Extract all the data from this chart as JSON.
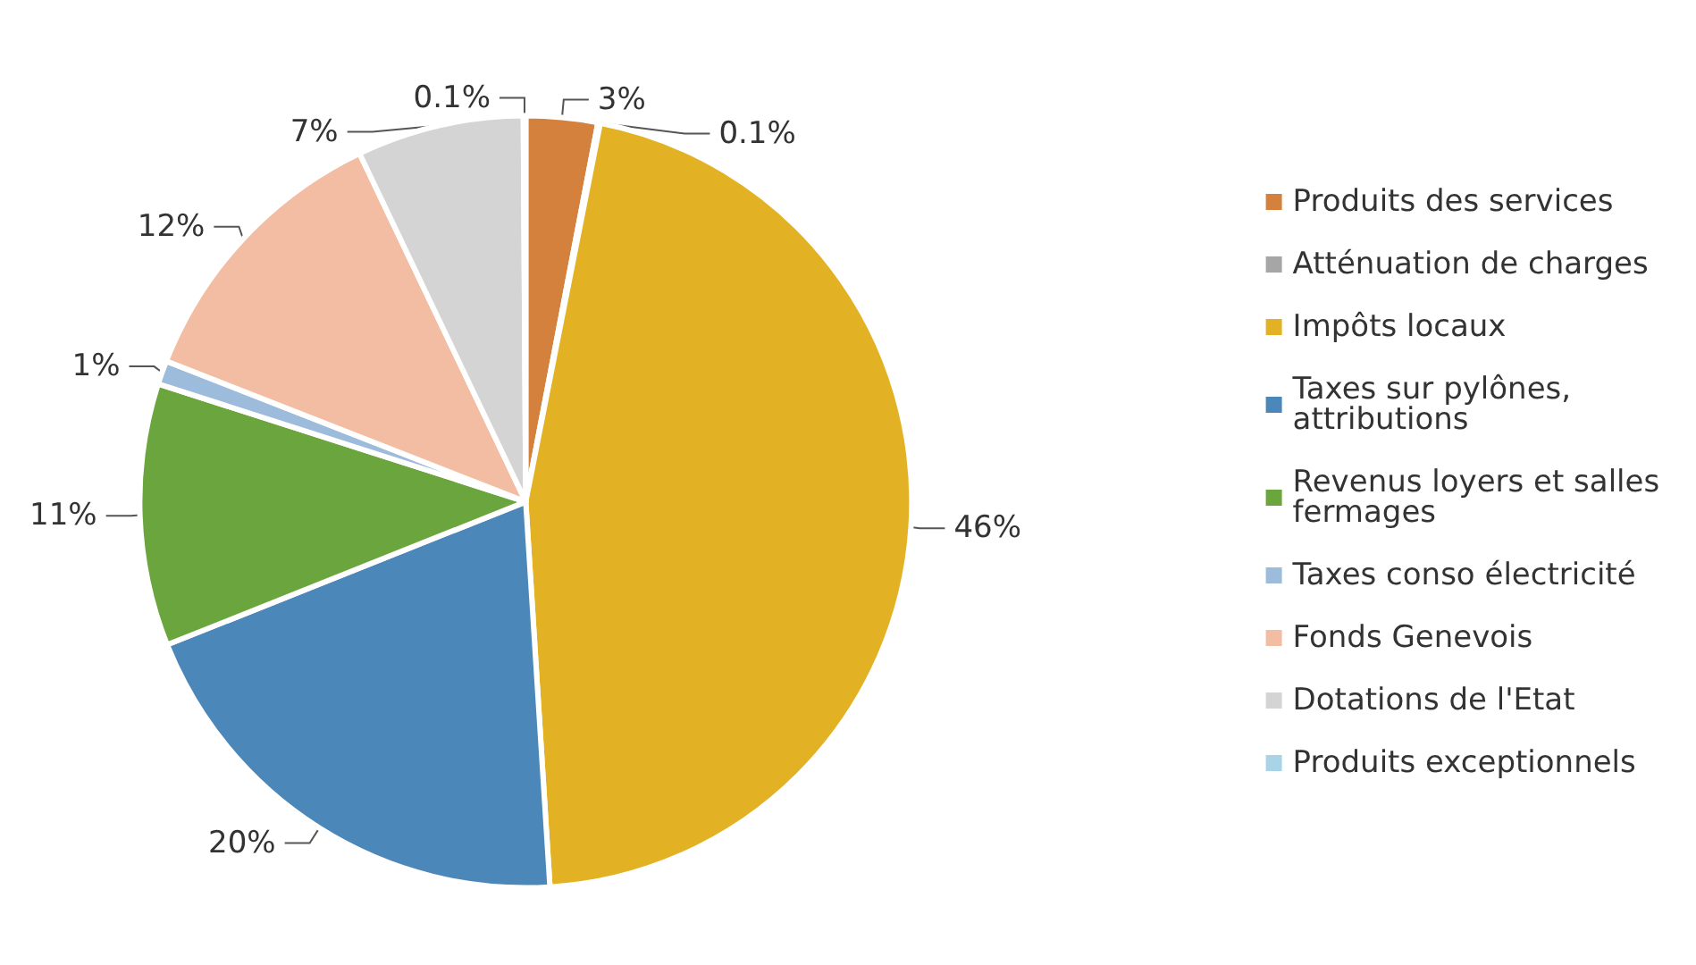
{
  "chart_data": {
    "type": "pie",
    "categories": [
      "Produits des services",
      "Atténuation de charges",
      "Impôts locaux",
      "Taxes sur pylônes, attributions",
      "Revenus loyers et salles fermages",
      "Taxes conso électricité",
      "Fonds Genevois",
      "Dotations de l'Etat",
      "Produits exceptionnels"
    ],
    "values": [
      3,
      0.1,
      46,
      20,
      11,
      1,
      12,
      7,
      0.1
    ],
    "colors": [
      "#d4813d",
      "#a6a6a6",
      "#e3b224",
      "#4c87b9",
      "#6ba53d",
      "#9dbcdc",
      "#f2bda2",
      "#d4d4d4",
      "#a9d4e8"
    ],
    "value_labels": [
      "3%",
      "0.1%",
      "46%",
      "20%",
      "11%",
      "1%",
      "12%",
      "7%",
      "0.1%"
    ],
    "legend": "right"
  }
}
